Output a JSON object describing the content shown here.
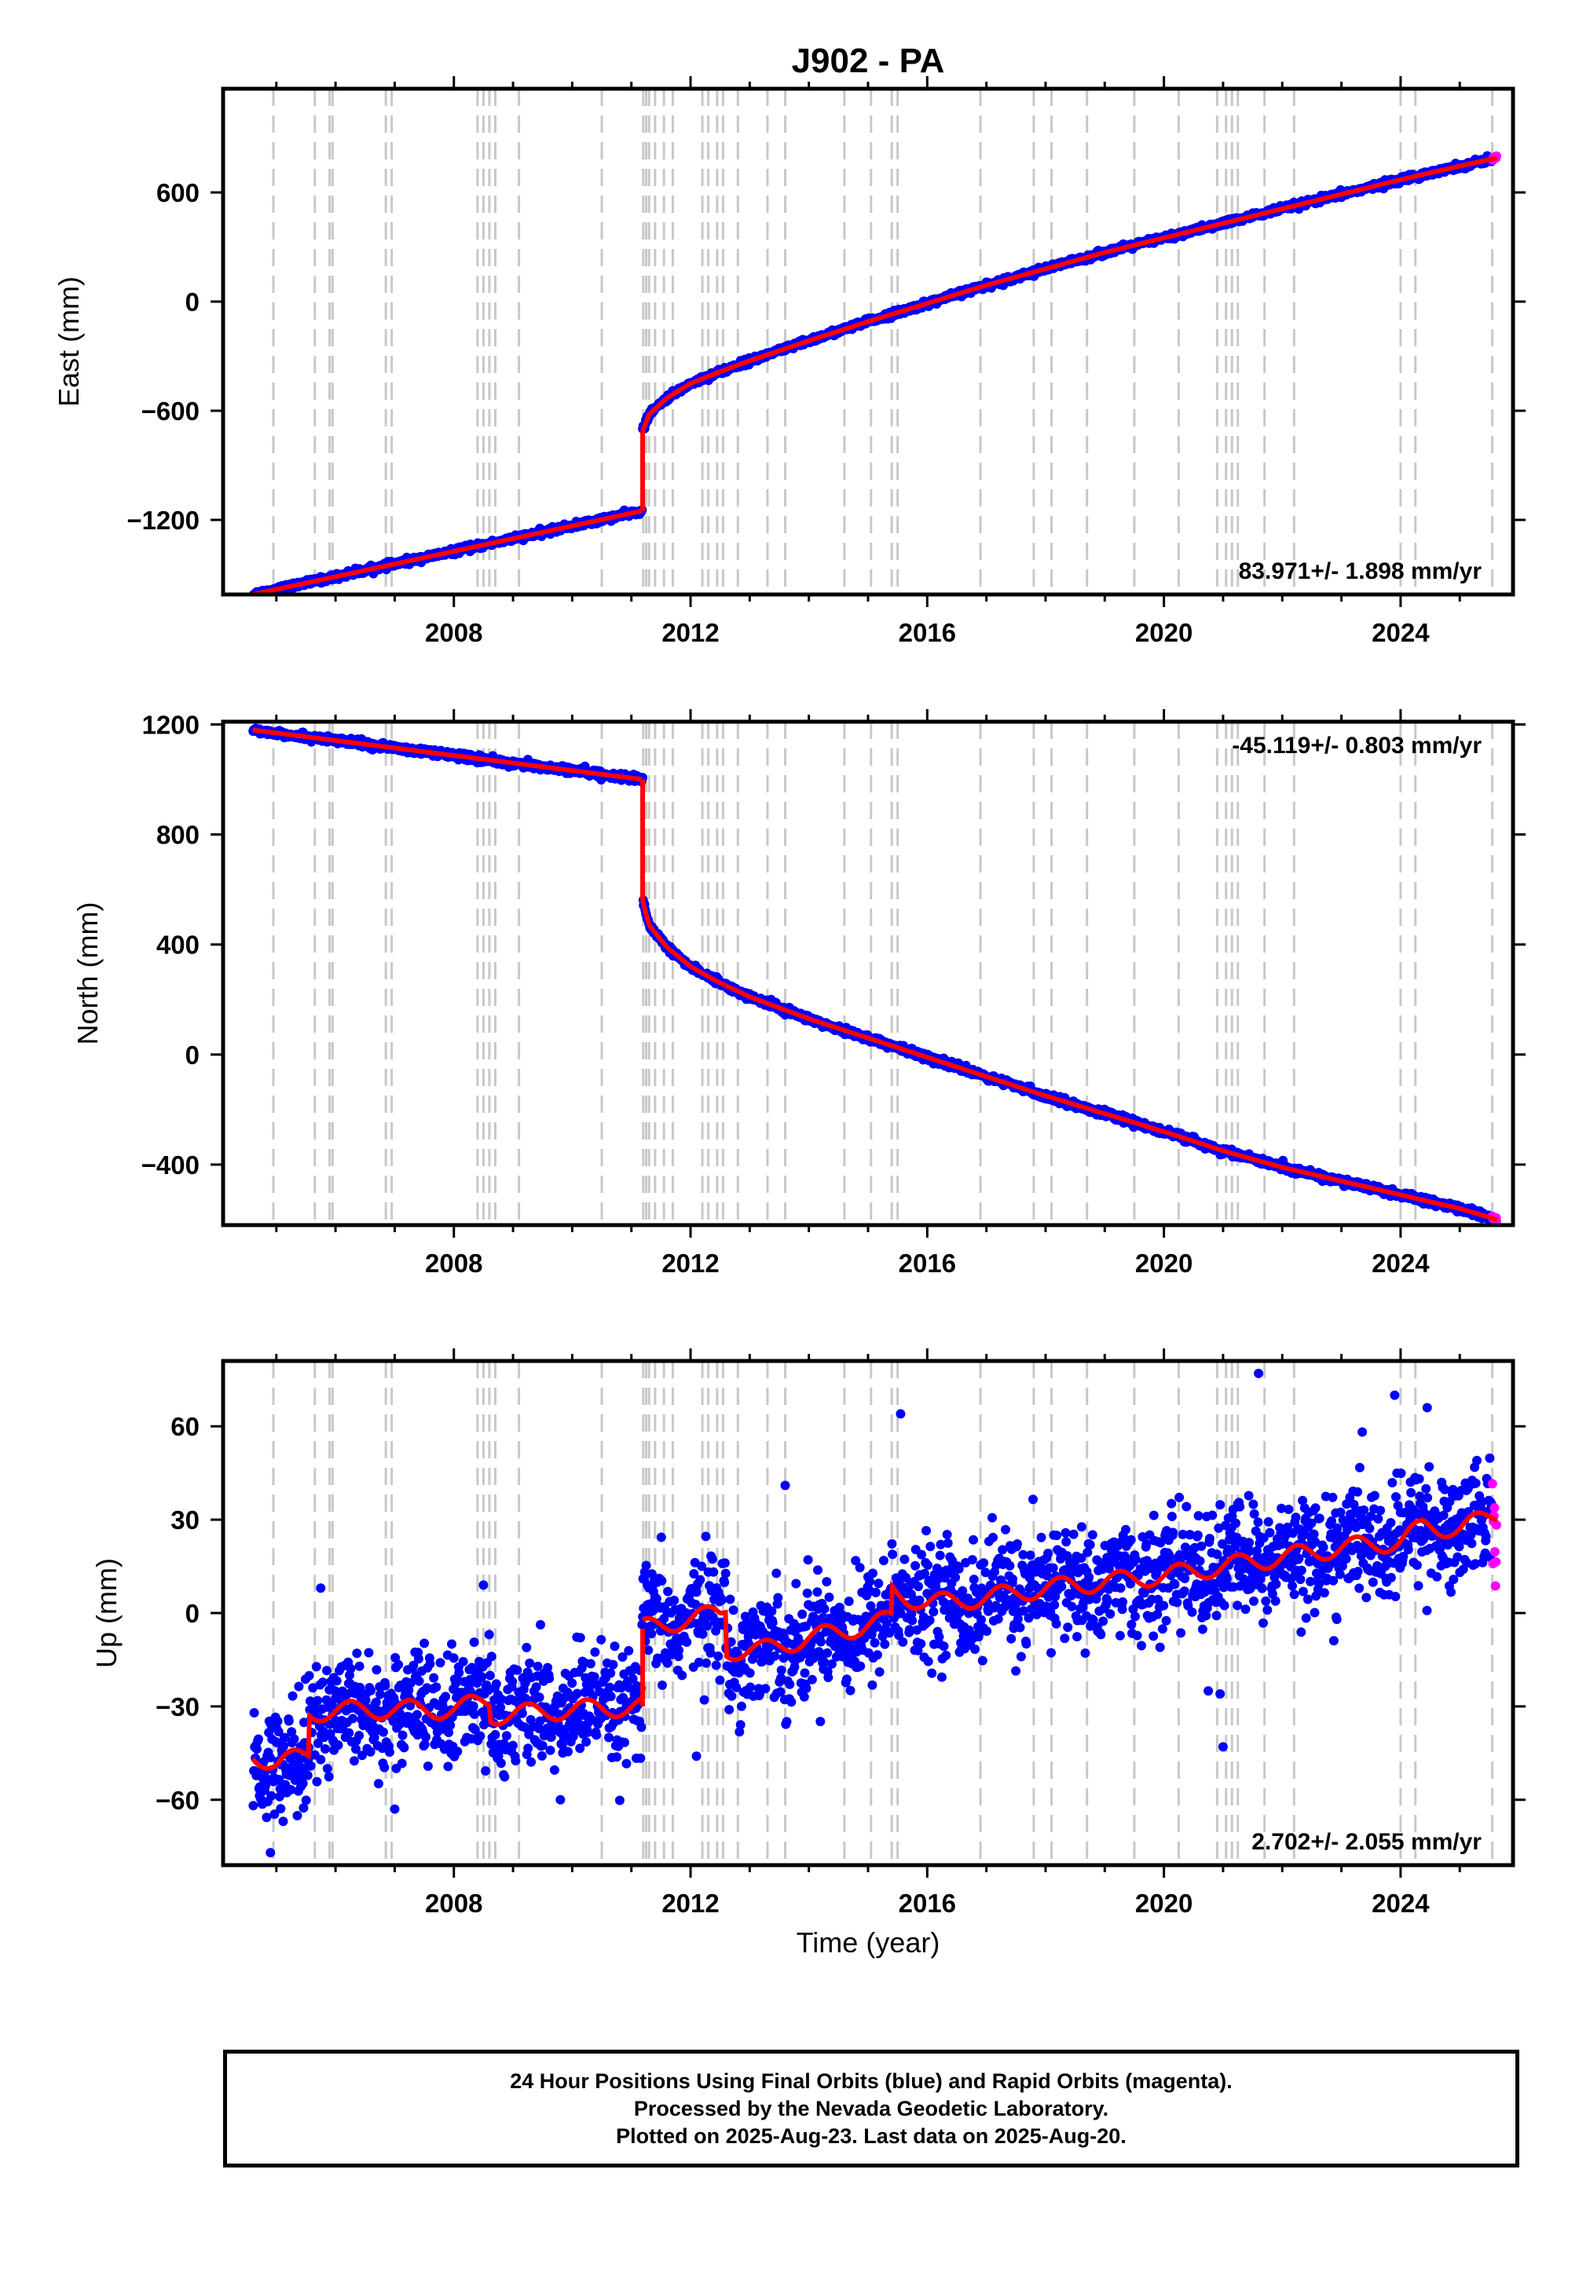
{
  "chart_data": {
    "type": "scatter",
    "title": "J902 - PA",
    "xlabel": "Time (year)",
    "x_ticks": [
      2008,
      2012,
      2016,
      2020,
      2024
    ],
    "x_range": [
      2004.1,
      2025.9
    ],
    "first_data_year": 2004.6,
    "last_data_year": 2025.63,
    "event_lines": [
      2004.95,
      2005.65,
      2005.9,
      2005.95,
      2006.85,
      2006.95,
      2008.4,
      2008.5,
      2008.6,
      2008.7,
      2009.1,
      2010.5,
      2011.2,
      2011.25,
      2011.3,
      2011.4,
      2011.55,
      2011.7,
      2012.2,
      2012.3,
      2012.45,
      2012.55,
      2012.8,
      2013.3,
      2013.6,
      2014.6,
      2015.05,
      2015.4,
      2015.5,
      2016.9,
      2017.8,
      2018.1,
      2018.7,
      2019.5,
      2020.25,
      2020.9,
      2021.05,
      2021.15,
      2021.25,
      2021.7,
      2022.2,
      2024.0,
      2024.25,
      2025.55
    ],
    "panels": [
      {
        "ylabel": "East (mm)",
        "yticks": [
          600,
          0,
          -600,
          -1200
        ],
        "ylim": [
          -1610,
          1170
        ],
        "rate_label": "83.971+/- 1.898 mm/yr",
        "rate_position": "bottom-right",
        "segments": [
          {
            "x": [
              2004.6,
              2011.19
            ],
            "y": [
              -1610,
              -1150
            ]
          },
          {
            "x": [
              2011.19,
              2011.19
            ],
            "y": [
              -1150,
              -710
            ]
          },
          {
            "x": [
              2011.19,
              2011.3,
              2011.6,
              2012.0,
              2012.5,
              2013.0,
              2014.0,
              2015.0,
              2016.0,
              2017.0,
              2018.0,
              2019.0,
              2020.0,
              2021.0,
              2022.0,
              2023.0,
              2024.0,
              2025.0,
              2025.63
            ],
            "y": [
              -710,
              -620,
              -530,
              -450,
              -385,
              -325,
              -215,
              -110,
              -10,
              90,
              180,
              270,
              350,
              430,
              510,
              590,
              670,
              745,
              790
            ]
          }
        ],
        "noise": 8,
        "seasonal": 0,
        "outliers": []
      },
      {
        "ylabel": "North (mm)",
        "yticks": [
          1200,
          800,
          400,
          0,
          -400
        ],
        "ylim": [
          -620,
          1210
        ],
        "rate_label": "-45.119+/- 0.803 mm/yr",
        "rate_position": "top-right",
        "segments": [
          {
            "x": [
              2004.6,
              2011.19
            ],
            "y": [
              1180,
              1000
            ]
          },
          {
            "x": [
              2011.19,
              2011.19
            ],
            "y": [
              1000,
              560
            ]
          },
          {
            "x": [
              2011.19,
              2011.3,
              2011.6,
              2012.0,
              2012.5,
              2013.0,
              2014.0,
              2015.0,
              2016.0,
              2017.0,
              2018.0,
              2019.0,
              2020.0,
              2021.0,
              2022.0,
              2023.0,
              2024.0,
              2025.0,
              2025.63
            ],
            "y": [
              560,
              470,
              390,
              320,
              260,
              210,
              130,
              60,
              -10,
              -80,
              -150,
              -215,
              -280,
              -350,
              -410,
              -460,
              -510,
              -560,
              -600
            ]
          }
        ],
        "noise": 6,
        "seasonal": 0,
        "outliers": []
      },
      {
        "ylabel": "Up (mm)",
        "yticks": [
          60,
          30,
          0,
          -30,
          -60
        ],
        "ylim": [
          -81,
          81
        ],
        "rate_label": "2.702+/- 2.055 mm/yr",
        "rate_position": "bottom-right",
        "segments": [
          {
            "x": [
              2004.6,
              2005.0,
              2005.55,
              2005.55,
              2006.5,
              2008.0,
              2008.6,
              2008.6,
              2010.0,
              2011.19
            ],
            "y": [
              -45,
              -49,
              -45,
              -32,
              -31,
              -31,
              -28,
              -33,
              -31,
              -30
            ]
          },
          {
            "x": [
              2011.19,
              2011.19
            ],
            "y": [
              -30,
              -5
            ]
          },
          {
            "x": [
              2011.19,
              2012.5,
              2012.6,
              2012.6,
              2013.2,
              2014.0,
              2015.0,
              2015.4,
              2015.4,
              2016.0,
              2017.0,
              2018.0,
              2019.0,
              2020.0,
              2021.0,
              2022.0,
              2023.0,
              2024.0,
              2024.4,
              2025.0,
              2025.63
            ],
            "y": [
              -5,
              0,
              2,
              -12,
              -12,
              -8,
              -4,
              -2,
              7,
              3,
              5,
              8,
              10,
              12,
              15,
              18,
              21,
              23,
              28,
              27,
              32
            ]
          }
        ],
        "noise": 9,
        "seasonal": 5,
        "outliers": [
          {
            "x": 2021.6,
            "y": 77
          },
          {
            "x": 2015.55,
            "y": 64
          },
          {
            "x": 2024.45,
            "y": 66
          },
          {
            "x": 2023.9,
            "y": 70
          },
          {
            "x": 2020.75,
            "y": -25
          },
          {
            "x": 2020.95,
            "y": -26
          },
          {
            "x": 2021.0,
            "y": -43
          },
          {
            "x": 2004.9,
            "y": -77
          },
          {
            "x": 2005.75,
            "y": 8
          },
          {
            "x": 2008.5,
            "y": 9
          },
          {
            "x": 2012.1,
            "y": -46
          },
          {
            "x": 2013.6,
            "y": 41
          },
          {
            "x": 2007.0,
            "y": -63
          },
          {
            "x": 2009.8,
            "y": -60
          }
        ]
      }
    ],
    "series": [
      {
        "name": "Final Orbits",
        "color": "#0000ff"
      },
      {
        "name": "Rapid Orbits",
        "color": "#ff00ff"
      },
      {
        "color": "#ff0000"
      }
    ]
  },
  "footer": {
    "line1": "24 Hour Positions Using Final Orbits (blue) and Rapid Orbits (magenta).",
    "line2": "Processed by the Nevada Geodetic Laboratory.",
    "line3": "Plotted on 2025-Aug-23. Last data on 2025-Aug-20."
  }
}
